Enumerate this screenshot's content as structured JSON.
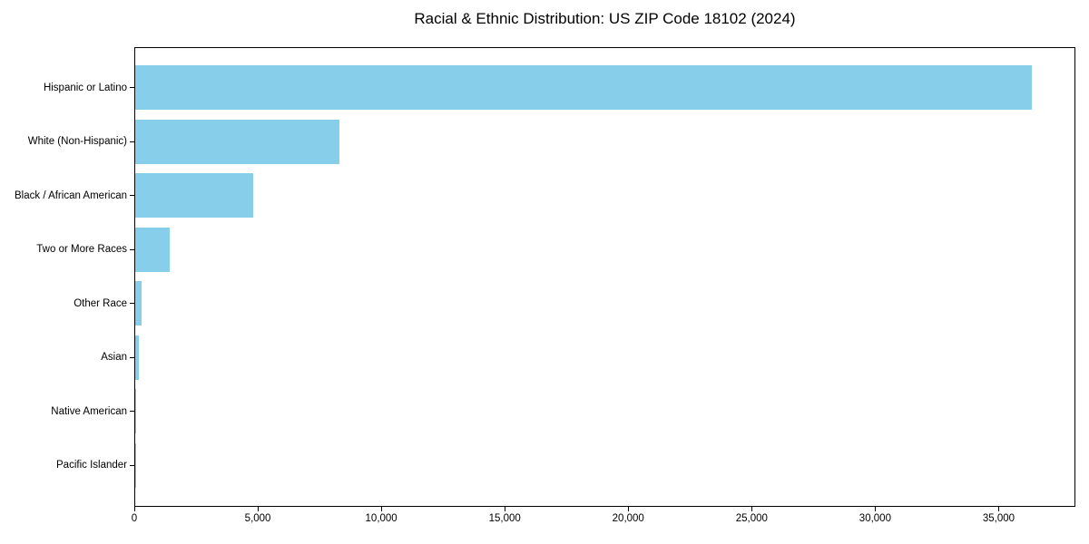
{
  "chart_data": {
    "type": "bar",
    "orientation": "horizontal",
    "title": "Racial & Ethnic Distribution: US ZIP Code 18102 (2024)",
    "categories": [
      "Hispanic or Latino",
      "White (Non-Hispanic)",
      "Black / African American",
      "Two or More Races",
      "Other Race",
      "Asian",
      "Native American",
      "Pacific Islander"
    ],
    "values": [
      36300,
      8260,
      4770,
      1380,
      240,
      160,
      40,
      15
    ],
    "xlim": [
      0,
      38070
    ],
    "xticks": [
      0,
      5000,
      10000,
      15000,
      20000,
      25000,
      30000,
      35000
    ],
    "xtick_labels": [
      "0",
      "5,000",
      "10,000",
      "15,000",
      "20,000",
      "25,000",
      "30,000",
      "35,000"
    ],
    "xlabel": "",
    "ylabel": "",
    "grid": false,
    "bar_color": "#87CEEB",
    "axis_color": "#000000",
    "background_color": "#FFFFFF"
  }
}
